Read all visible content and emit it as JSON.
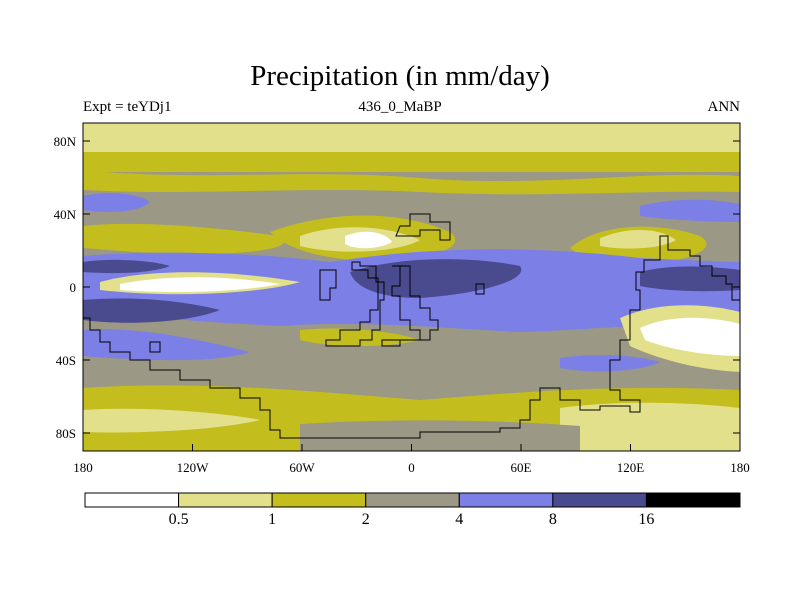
{
  "title": "Precipitation (in mm/day)",
  "subtitle": {
    "left": "Expt = teYDj1",
    "center": "436_0_MaBP",
    "right": "ANN"
  },
  "axes": {
    "x_ticks": [
      "180",
      "120W",
      "60W",
      "0",
      "60E",
      "120E",
      "180"
    ],
    "y_ticks": [
      "80N",
      "40N",
      "0",
      "40S",
      "80S"
    ]
  },
  "colorbar": {
    "labels": [
      "0.5",
      "1",
      "2",
      "4",
      "8",
      "16"
    ],
    "colors": [
      "#ffffff",
      "#e3e08c",
      "#c4bd1e",
      "#9b9886",
      "#7b7fe6",
      "#4a4a8f",
      "#000000"
    ]
  },
  "chart_data": {
    "type": "heatmap",
    "title": "Precipitation (in mm/day)",
    "variable": "Precipitation",
    "units": "mm/day",
    "x_range": [
      -180,
      180
    ],
    "y_range": [
      -90,
      90
    ],
    "levels": [
      0.5,
      1,
      2,
      4,
      8,
      16
    ],
    "zonal_bands": [
      {
        "lat_from": 90,
        "lat_to": 70,
        "class": "0.5-1"
      },
      {
        "lat_from": 70,
        "lat_to": 58,
        "class": "1-2"
      },
      {
        "lat_from": 58,
        "lat_to": 45,
        "class": "2-4"
      },
      {
        "lat_from": 45,
        "lat_to": 30,
        "class": "2-4 with 4-8 patches"
      },
      {
        "lat_from": 30,
        "lat_to": 10,
        "class": "1-2 and 2-4"
      },
      {
        "lat_from": 10,
        "lat_to": -10,
        "class": "4-8 with 8-16 and <0.5 patches"
      },
      {
        "lat_from": -10,
        "lat_to": -30,
        "class": "4-8"
      },
      {
        "lat_from": -30,
        "lat_to": -60,
        "class": "2-4 with 1-2 patches"
      },
      {
        "lat_from": -60,
        "lat_to": -90,
        "class": "1-2 and 0.5-1"
      }
    ]
  }
}
